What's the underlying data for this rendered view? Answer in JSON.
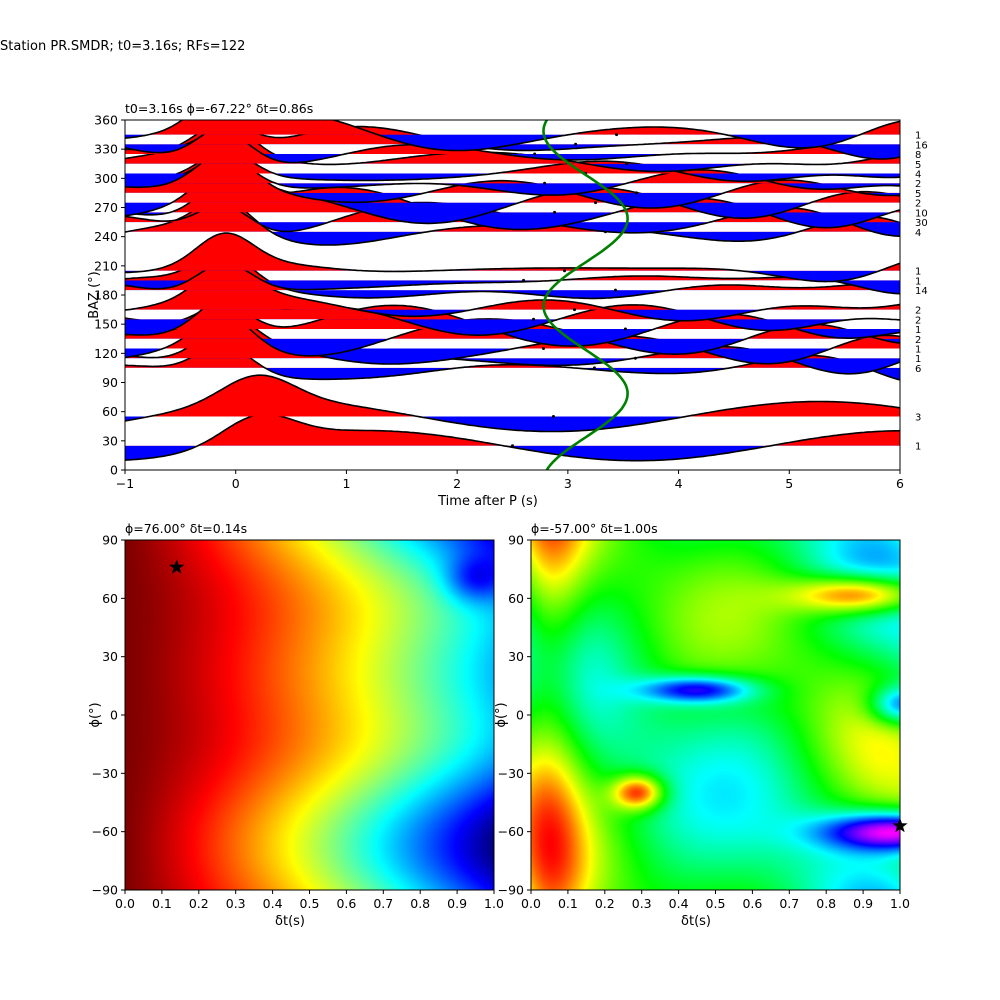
{
  "suptitle": "Station PR.SMDR; t0=3.16s; RFs=122",
  "colors": {
    "positive": "#ff0000",
    "negative": "#0000ff",
    "trace": "#000000",
    "sinusoid": "#008000",
    "background": "#ffffff"
  },
  "chart_data": [
    {
      "type": "line",
      "title": "t0=3.16s ϕ=-67.22° δt=0.86s",
      "xlabel": "Time after P (s)",
      "ylabel": "BAZ (°)",
      "xlim": [
        -1,
        6
      ],
      "ylim": [
        0,
        360
      ],
      "xticks": [
        "−1",
        "0",
        "1",
        "2",
        "3",
        "4",
        "5",
        "6"
      ],
      "yticks": [
        "0",
        "30",
        "60",
        "90",
        "120",
        "150",
        "180",
        "210",
        "240",
        "270",
        "300",
        "330",
        "360"
      ],
      "traces": [
        {
          "baz": 25,
          "count": "1"
        },
        {
          "baz": 55,
          "count": "3"
        },
        {
          "baz": 105,
          "count": "6"
        },
        {
          "baz": 115,
          "count": "1"
        },
        {
          "baz": 125,
          "count": "1"
        },
        {
          "baz": 135,
          "count": "2"
        },
        {
          "baz": 145,
          "count": "1"
        },
        {
          "baz": 155,
          "count": "2"
        },
        {
          "baz": 165,
          "count": "2"
        },
        {
          "baz": 185,
          "count": "14"
        },
        {
          "baz": 195,
          "count": "1"
        },
        {
          "baz": 205,
          "count": "1"
        },
        {
          "baz": 245,
          "count": "4"
        },
        {
          "baz": 255,
          "count": "30"
        },
        {
          "baz": 265,
          "count": "10"
        },
        {
          "baz": 275,
          "count": "2"
        },
        {
          "baz": 285,
          "count": "5"
        },
        {
          "baz": 295,
          "count": "2"
        },
        {
          "baz": 305,
          "count": "4"
        },
        {
          "baz": 315,
          "count": "5"
        },
        {
          "baz": 325,
          "count": "8"
        },
        {
          "baz": 335,
          "count": "16"
        },
        {
          "baz": 345,
          "count": "1"
        }
      ],
      "sinusoid": {
        "t0": 3.16,
        "amplitude": 0.38,
        "phase_deg": -67.22
      }
    },
    {
      "type": "heatmap",
      "title": "ϕ=76.00° δt=0.14s",
      "xlabel": "δt(s)",
      "ylabel": "ϕ(°)",
      "xlim": [
        0,
        1.0
      ],
      "ylim": [
        -90,
        90
      ],
      "xticks": [
        "0.0",
        "0.1",
        "0.2",
        "0.3",
        "0.4",
        "0.5",
        "0.6",
        "0.7",
        "0.8",
        "0.9",
        "1.0"
      ],
      "yticks": [
        "−90",
        "−60",
        "−30",
        "0",
        "30",
        "60",
        "90"
      ],
      "colormap": "jet",
      "best": {
        "dt": 0.14,
        "phi": 76
      }
    },
    {
      "type": "heatmap",
      "title": "ϕ=-57.00° δt=1.00s",
      "xlabel": "δt(s)",
      "ylabel": "ϕ(°)",
      "xlim": [
        0,
        1.0
      ],
      "ylim": [
        -90,
        90
      ],
      "xticks": [
        "0.0",
        "0.1",
        "0.2",
        "0.3",
        "0.4",
        "0.5",
        "0.6",
        "0.7",
        "0.8",
        "0.9",
        "1.0"
      ],
      "yticks": [
        "−90",
        "−60",
        "−30",
        "0",
        "30",
        "60",
        "90"
      ],
      "colormap": "hsv",
      "best": {
        "dt": 1.0,
        "phi": -57
      }
    }
  ]
}
